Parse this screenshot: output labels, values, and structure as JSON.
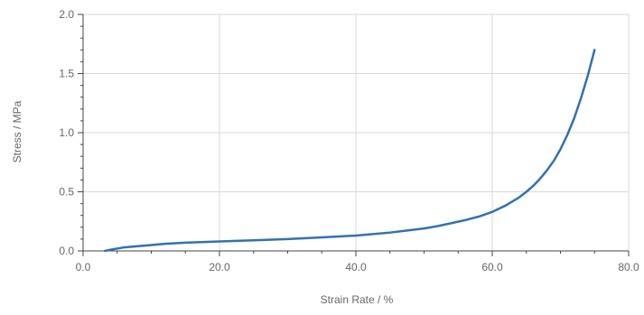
{
  "chart_data": {
    "type": "line",
    "title": "",
    "xlabel": "Strain Rate / %",
    "ylabel": "Stress / MPa",
    "xlim": [
      0,
      80
    ],
    "ylim": [
      0,
      2
    ],
    "x_ticks": [
      0,
      20,
      40,
      60,
      80
    ],
    "x_tick_labels": [
      "0.0",
      "20.0",
      "40.0",
      "60.0",
      "80.0"
    ],
    "y_ticks": [
      0,
      0.5,
      1.0,
      1.5,
      2.0
    ],
    "y_tick_labels": [
      "0.0",
      "0.5",
      "1.0",
      "1.5",
      "2.0"
    ],
    "grid": true,
    "series": [
      {
        "color": "#2f72b5",
        "x": [
          3.2,
          4,
          6,
          8,
          10,
          12,
          15,
          20,
          25,
          30,
          35,
          40,
          45,
          50,
          52,
          54,
          56,
          58,
          60,
          62,
          64,
          65,
          66,
          67,
          68,
          69,
          70,
          71,
          72,
          73,
          74,
          75
        ],
        "y": [
          0.0,
          0.01,
          0.03,
          0.04,
          0.05,
          0.06,
          0.07,
          0.08,
          0.09,
          0.1,
          0.115,
          0.13,
          0.155,
          0.19,
          0.21,
          0.235,
          0.26,
          0.29,
          0.33,
          0.385,
          0.455,
          0.5,
          0.55,
          0.61,
          0.68,
          0.76,
          0.86,
          0.98,
          1.12,
          1.29,
          1.48,
          1.7
        ]
      }
    ]
  }
}
